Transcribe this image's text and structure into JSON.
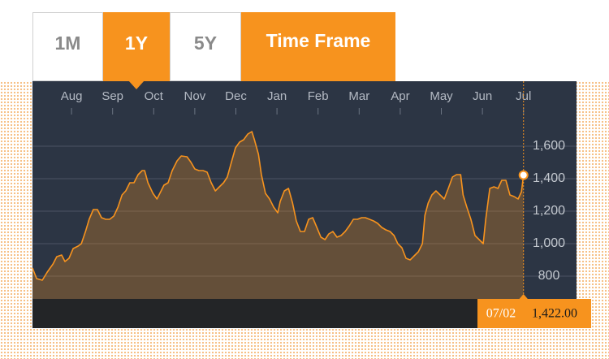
{
  "tabs": {
    "options": [
      "1M",
      "1Y",
      "5Y"
    ],
    "selected": 1,
    "label": "Time Frame"
  },
  "chart_data": {
    "type": "area",
    "x": [
      -0.95,
      -0.85,
      -0.71,
      -0.59,
      -0.45,
      -0.36,
      -0.24,
      -0.16,
      -0.06,
      0.04,
      0.16,
      0.24,
      0.34,
      0.43,
      0.53,
      0.63,
      0.73,
      0.83,
      0.93,
      1.03,
      1.13,
      1.23,
      1.32,
      1.42,
      1.52,
      1.62,
      1.72,
      1.78,
      1.86,
      1.98,
      2.08,
      2.15,
      2.25,
      2.35,
      2.45,
      2.57,
      2.67,
      2.81,
      2.91,
      3.0,
      3.1,
      3.2,
      3.3,
      3.4,
      3.5,
      3.6,
      3.7,
      3.79,
      3.89,
      3.99,
      4.09,
      4.19,
      4.29,
      4.39,
      4.45,
      4.55,
      4.62,
      4.72,
      4.82,
      4.92,
      5.02,
      5.08,
      5.18,
      5.28,
      5.38,
      5.47,
      5.57,
      5.67,
      5.77,
      5.87,
      5.97,
      6.07,
      6.17,
      6.26,
      6.36,
      6.46,
      6.56,
      6.66,
      6.76,
      6.86,
      6.96,
      7.06,
      7.15,
      7.25,
      7.35,
      7.45,
      7.55,
      7.65,
      7.75,
      7.85,
      7.94,
      8.04,
      8.14,
      8.24,
      8.34,
      8.44,
      8.54,
      8.6,
      8.68,
      8.77,
      8.87,
      8.97,
      9.07,
      9.17,
      9.27,
      9.37,
      9.47,
      9.53,
      9.62,
      9.72,
      9.82,
      9.92,
      10.02,
      10.08,
      10.18,
      10.28,
      10.38,
      10.47,
      10.57,
      10.67,
      10.77,
      10.87,
      10.95,
      11.0
    ],
    "values": [
      850,
      785,
      775,
      825,
      875,
      920,
      930,
      890,
      910,
      970,
      985,
      1000,
      1075,
      1150,
      1210,
      1210,
      1160,
      1150,
      1150,
      1170,
      1225,
      1300,
      1325,
      1375,
      1375,
      1425,
      1450,
      1450,
      1375,
      1310,
      1275,
      1310,
      1360,
      1375,
      1450,
      1510,
      1540,
      1535,
      1500,
      1460,
      1450,
      1450,
      1440,
      1375,
      1325,
      1350,
      1375,
      1410,
      1500,
      1590,
      1625,
      1640,
      1675,
      1690,
      1640,
      1550,
      1425,
      1310,
      1275,
      1225,
      1190,
      1260,
      1325,
      1340,
      1250,
      1140,
      1075,
      1075,
      1150,
      1160,
      1100,
      1040,
      1025,
      1060,
      1075,
      1040,
      1050,
      1075,
      1110,
      1150,
      1150,
      1160,
      1160,
      1150,
      1140,
      1125,
      1100,
      1085,
      1075,
      1050,
      1000,
      975,
      910,
      900,
      925,
      950,
      1000,
      1175,
      1250,
      1300,
      1325,
      1300,
      1275,
      1340,
      1410,
      1425,
      1425,
      1300,
      1225,
      1150,
      1050,
      1025,
      1000,
      1150,
      1340,
      1350,
      1340,
      1390,
      1390,
      1300,
      1290,
      1275,
      1320,
      1422
    ],
    "color": "#f7931e",
    "xlim": [
      -0.95,
      12.29
    ],
    "xticks": [
      {
        "value": 0,
        "label": "Aug"
      },
      {
        "value": 1,
        "label": "Sep"
      },
      {
        "value": 2,
        "label": "Oct"
      },
      {
        "value": 3,
        "label": "Nov"
      },
      {
        "value": 4,
        "label": "Dec"
      },
      {
        "value": 5,
        "label": "Jan"
      },
      {
        "value": 6,
        "label": "Feb"
      },
      {
        "value": 7,
        "label": "Mar"
      },
      {
        "value": 8,
        "label": "Apr"
      },
      {
        "value": 9,
        "label": "May"
      },
      {
        "value": 10,
        "label": "Jun"
      },
      {
        "value": 11,
        "label": "Jul"
      }
    ],
    "ylim": [
      660,
      2000
    ],
    "yticks": [
      800,
      {
        "value": 1000,
        "label": "1,000"
      },
      {
        "value": 1200,
        "label": "1,200"
      },
      {
        "value": 1400,
        "label": "1,400"
      },
      {
        "value": 1600,
        "label": "1,600"
      }
    ],
    "grid": true,
    "tooltip": {
      "date": "07/02",
      "x": 11.0,
      "value": 1422,
      "label": "1,422.00"
    }
  }
}
